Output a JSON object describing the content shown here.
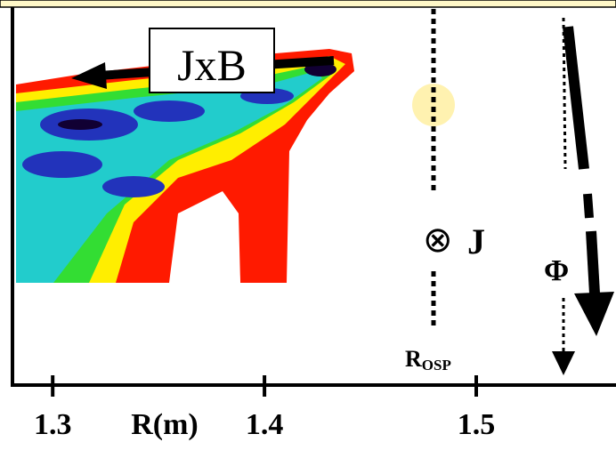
{
  "chart_data": {
    "type": "image",
    "xlabel": "R(m)",
    "xlim": [
      1.281,
      1.566
    ],
    "xticks": [
      1.3,
      1.4,
      1.5
    ],
    "annotations": {
      "force": "JxB",
      "current_symbol": "⊗",
      "current": "J",
      "flux": "Φ",
      "rosp_main": "R",
      "rosp_sub": "OSP"
    }
  }
}
